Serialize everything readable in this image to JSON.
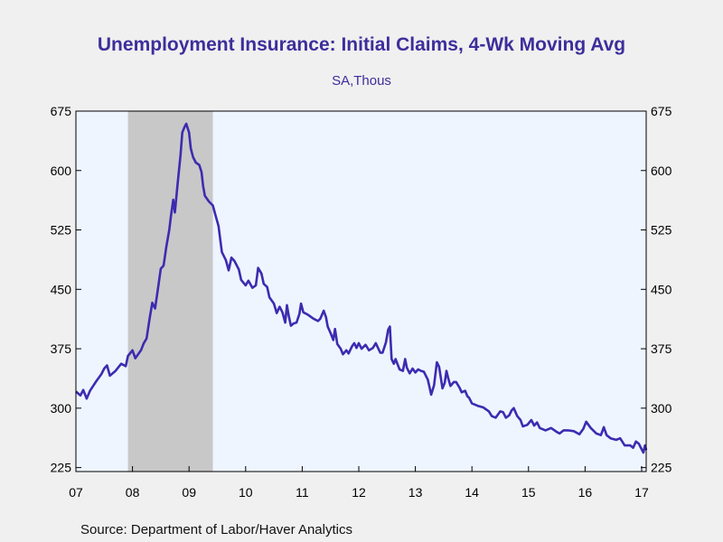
{
  "chart": {
    "title": "Unemployment Insurance: Initial Claims, 4-Wk Moving Avg",
    "subtitle": "SA,Thous",
    "source": "Source:  Department of Labor/Haver Analytics"
  },
  "colors": {
    "background": "#f0f0f0",
    "plot_background": "#eef5ff",
    "line": "#3d2bb0",
    "recession": "#c8c8c8",
    "title": "#3d2e9b"
  },
  "chart_data": {
    "type": "line",
    "title": "Unemployment Insurance: Initial Claims, 4-Wk Moving Avg",
    "subtitle": "SA,Thous",
    "xlabel": "",
    "ylabel": "",
    "x_tick_labels": [
      "07",
      "08",
      "09",
      "10",
      "11",
      "12",
      "13",
      "14",
      "15",
      "16",
      "17"
    ],
    "x_tick_years": [
      2007,
      2008,
      2009,
      2010,
      2011,
      2012,
      2013,
      2014,
      2015,
      2016,
      2017
    ],
    "y_ticks": [
      225,
      300,
      375,
      450,
      525,
      600,
      675
    ],
    "ylim": [
      220,
      675
    ],
    "xlim": [
      2007.0,
      2017.08
    ],
    "grid": false,
    "dual_y_axis": true,
    "shaded_periods": [
      {
        "label": "recession",
        "start": 2007.92,
        "end": 2009.42
      }
    ],
    "series": [
      {
        "points": [
          [
            2007.0,
            321
          ],
          [
            2007.08,
            316
          ],
          [
            2007.13,
            323
          ],
          [
            2007.19,
            312
          ],
          [
            2007.25,
            322
          ],
          [
            2007.35,
            333
          ],
          [
            2007.45,
            343
          ],
          [
            2007.5,
            350
          ],
          [
            2007.55,
            354
          ],
          [
            2007.6,
            341
          ],
          [
            2007.7,
            347
          ],
          [
            2007.8,
            356
          ],
          [
            2007.88,
            353
          ],
          [
            2007.92,
            366
          ],
          [
            2008.0,
            373
          ],
          [
            2008.05,
            363
          ],
          [
            2008.15,
            373
          ],
          [
            2008.2,
            382
          ],
          [
            2008.25,
            388
          ],
          [
            2008.3,
            412
          ],
          [
            2008.35,
            433
          ],
          [
            2008.4,
            426
          ],
          [
            2008.45,
            451
          ],
          [
            2008.5,
            476
          ],
          [
            2008.55,
            480
          ],
          [
            2008.6,
            505
          ],
          [
            2008.65,
            525
          ],
          [
            2008.68,
            543
          ],
          [
            2008.72,
            563
          ],
          [
            2008.75,
            547
          ],
          [
            2008.8,
            585
          ],
          [
            2008.85,
            620
          ],
          [
            2008.88,
            648
          ],
          [
            2008.92,
            655
          ],
          [
            2008.95,
            659
          ],
          [
            2009.0,
            648
          ],
          [
            2009.03,
            628
          ],
          [
            2009.07,
            617
          ],
          [
            2009.12,
            610
          ],
          [
            2009.18,
            607
          ],
          [
            2009.22,
            598
          ],
          [
            2009.25,
            580
          ],
          [
            2009.28,
            568
          ],
          [
            2009.35,
            561
          ],
          [
            2009.42,
            556
          ],
          [
            2009.47,
            543
          ],
          [
            2009.52,
            530
          ],
          [
            2009.58,
            497
          ],
          [
            2009.65,
            487
          ],
          [
            2009.7,
            474
          ],
          [
            2009.75,
            490
          ],
          [
            2009.8,
            486
          ],
          [
            2009.88,
            475
          ],
          [
            2009.92,
            462
          ],
          [
            2010.0,
            455
          ],
          [
            2010.05,
            461
          ],
          [
            2010.12,
            452
          ],
          [
            2010.18,
            455
          ],
          [
            2010.22,
            477
          ],
          [
            2010.28,
            470
          ],
          [
            2010.32,
            457
          ],
          [
            2010.38,
            453
          ],
          [
            2010.42,
            440
          ],
          [
            2010.5,
            432
          ],
          [
            2010.55,
            420
          ],
          [
            2010.6,
            428
          ],
          [
            2010.65,
            421
          ],
          [
            2010.7,
            408
          ],
          [
            2010.73,
            430
          ],
          [
            2010.76,
            417
          ],
          [
            2010.8,
            404
          ],
          [
            2010.85,
            407
          ],
          [
            2010.9,
            408
          ],
          [
            2010.95,
            419
          ],
          [
            2010.98,
            432
          ],
          [
            2011.02,
            421
          ],
          [
            2011.1,
            418
          ],
          [
            2011.2,
            413
          ],
          [
            2011.28,
            410
          ],
          [
            2011.32,
            413
          ],
          [
            2011.38,
            423
          ],
          [
            2011.42,
            415
          ],
          [
            2011.45,
            403
          ],
          [
            2011.5,
            395
          ],
          [
            2011.55,
            386
          ],
          [
            2011.58,
            400
          ],
          [
            2011.62,
            381
          ],
          [
            2011.68,
            375
          ],
          [
            2011.72,
            368
          ],
          [
            2011.78,
            373
          ],
          [
            2011.82,
            369
          ],
          [
            2011.88,
            378
          ],
          [
            2011.92,
            382
          ],
          [
            2011.96,
            376
          ],
          [
            2012.0,
            382
          ],
          [
            2012.05,
            375
          ],
          [
            2012.12,
            380
          ],
          [
            2012.18,
            373
          ],
          [
            2012.25,
            376
          ],
          [
            2012.3,
            382
          ],
          [
            2012.38,
            370
          ],
          [
            2012.42,
            370
          ],
          [
            2012.48,
            383
          ],
          [
            2012.52,
            399
          ],
          [
            2012.55,
            403
          ],
          [
            2012.58,
            362
          ],
          [
            2012.62,
            356
          ],
          [
            2012.65,
            362
          ],
          [
            2012.72,
            349
          ],
          [
            2012.78,
            347
          ],
          [
            2012.82,
            362
          ],
          [
            2012.85,
            351
          ],
          [
            2012.9,
            344
          ],
          [
            2012.95,
            350
          ],
          [
            2013.0,
            345
          ],
          [
            2013.05,
            349
          ],
          [
            2013.1,
            347
          ],
          [
            2013.15,
            346
          ],
          [
            2013.22,
            336
          ],
          [
            2013.28,
            317
          ],
          [
            2013.33,
            329
          ],
          [
            2013.38,
            358
          ],
          [
            2013.42,
            352
          ],
          [
            2013.48,
            325
          ],
          [
            2013.52,
            332
          ],
          [
            2013.55,
            347
          ],
          [
            2013.58,
            338
          ],
          [
            2013.62,
            328
          ],
          [
            2013.68,
            333
          ],
          [
            2013.72,
            333
          ],
          [
            2013.78,
            326
          ],
          [
            2013.82,
            320
          ],
          [
            2013.88,
            322
          ],
          [
            2013.92,
            315
          ],
          [
            2013.95,
            313
          ],
          [
            2014.0,
            306
          ],
          [
            2014.1,
            303
          ],
          [
            2014.2,
            301
          ],
          [
            2014.3,
            296
          ],
          [
            2014.35,
            290
          ],
          [
            2014.42,
            288
          ],
          [
            2014.5,
            296
          ],
          [
            2014.55,
            295
          ],
          [
            2014.6,
            288
          ],
          [
            2014.66,
            291
          ],
          [
            2014.7,
            297
          ],
          [
            2014.74,
            300
          ],
          [
            2014.8,
            290
          ],
          [
            2014.86,
            285
          ],
          [
            2014.9,
            277
          ],
          [
            2014.98,
            279
          ],
          [
            2015.05,
            285
          ],
          [
            2015.1,
            278
          ],
          [
            2015.15,
            282
          ],
          [
            2015.2,
            275
          ],
          [
            2015.3,
            272
          ],
          [
            2015.4,
            275
          ],
          [
            2015.5,
            270
          ],
          [
            2015.55,
            268
          ],
          [
            2015.62,
            272
          ],
          [
            2015.7,
            272
          ],
          [
            2015.8,
            271
          ],
          [
            2015.9,
            267
          ],
          [
            2015.97,
            274
          ],
          [
            2016.02,
            283
          ],
          [
            2016.1,
            275
          ],
          [
            2016.2,
            268
          ],
          [
            2016.28,
            266
          ],
          [
            2016.33,
            276
          ],
          [
            2016.38,
            266
          ],
          [
            2016.45,
            262
          ],
          [
            2016.55,
            260
          ],
          [
            2016.62,
            262
          ],
          [
            2016.7,
            253
          ],
          [
            2016.8,
            253
          ],
          [
            2016.85,
            250
          ],
          [
            2016.9,
            258
          ],
          [
            2016.95,
            255
          ],
          [
            2017.0,
            248
          ],
          [
            2017.03,
            244
          ],
          [
            2017.06,
            253
          ],
          [
            2017.08,
            247
          ]
        ]
      }
    ]
  }
}
